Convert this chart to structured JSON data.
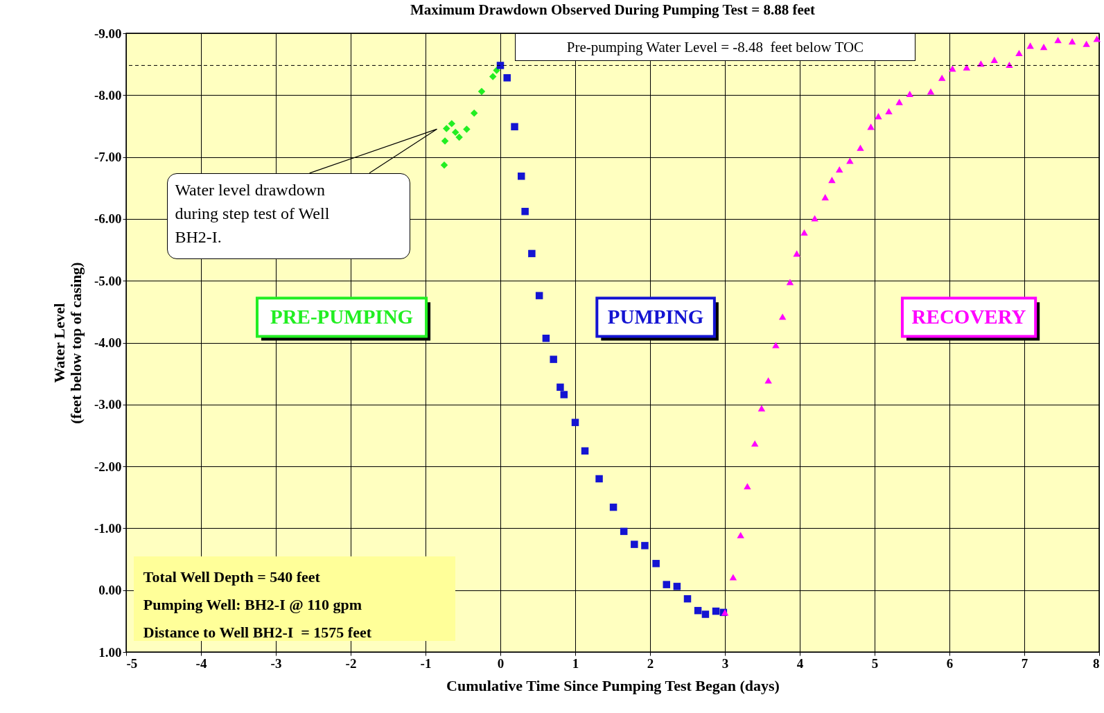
{
  "chart_data": {
    "type": "scatter",
    "title": "Maximum Drawdown Observed During Pumping Test = 8.88 feet",
    "xlabel": "Cumulative Time Since Pumping Test Began (days)",
    "ylabel": "Water Level\n(feet below top of casing)",
    "xlim": [
      -5,
      8
    ],
    "xticks": [
      -5,
      -4,
      -3,
      -2,
      -1,
      0,
      1,
      2,
      3,
      4,
      5,
      6,
      7,
      8
    ],
    "ylim": [
      1,
      -9
    ],
    "yticks": [
      {
        "value": -9,
        "label": "-9.00"
      },
      {
        "value": -8,
        "label": "-8.00"
      },
      {
        "value": -7,
        "label": "-7.00"
      },
      {
        "value": -6,
        "label": "-6.00"
      },
      {
        "value": -5,
        "label": "-5.00"
      },
      {
        "value": -4,
        "label": "-4.00"
      },
      {
        "value": -3,
        "label": "-3.00"
      },
      {
        "value": -2,
        "label": "-2.00"
      },
      {
        "value": -1,
        "label": "-1.00"
      },
      {
        "value": 0,
        "label": "0.00"
      },
      {
        "value": 1,
        "label": "1.00"
      }
    ],
    "grid": true,
    "series": [
      {
        "name": "PRE-PUMPING",
        "color": "#22ee22",
        "marker": "diamond",
        "x": [
          -0.75,
          -0.74,
          -0.72,
          -0.65,
          -0.6,
          -0.55,
          -0.45,
          -0.35,
          -0.25,
          -0.1,
          -0.05
        ],
        "values": [
          -6.87,
          -7.26,
          -7.46,
          -7.54,
          -7.4,
          -7.32,
          -7.45,
          -7.71,
          -8.06,
          -8.3,
          -8.4
        ]
      },
      {
        "name": "PUMPING",
        "color": "#1414d2",
        "marker": "square",
        "x": [
          0,
          0.09,
          0.19,
          0.28,
          0.33,
          0.42,
          0.52,
          0.61,
          0.71,
          0.8,
          0.85,
          1,
          1.13,
          1.32,
          1.51,
          1.65,
          1.79,
          1.93,
          2.08,
          2.22,
          2.36,
          2.5,
          2.64,
          2.74,
          2.88,
          2.98
        ],
        "values": [
          -8.48,
          -8.28,
          -7.49,
          -6.69,
          -6.12,
          -5.44,
          -4.76,
          -4.07,
          -3.73,
          -3.28,
          -3.16,
          -2.71,
          -2.25,
          -1.8,
          -1.34,
          -0.95,
          -0.74,
          -0.72,
          -0.43,
          -0.09,
          -0.06,
          0.14,
          0.33,
          0.39,
          0.34,
          0.36
        ]
      },
      {
        "name": "RECOVERY",
        "color": "#ff00ff",
        "marker": "triangle",
        "x": [
          3,
          3.11,
          3.21,
          3.3,
          3.4,
          3.49,
          3.58,
          3.68,
          3.77,
          3.87,
          3.96,
          4.06,
          4.2,
          4.34,
          4.43,
          4.53,
          4.67,
          4.81,
          4.95,
          5.05,
          5.19,
          5.33,
          5.47,
          5.75,
          5.9,
          6.04,
          6.23,
          6.42,
          6.6,
          6.8,
          6.93,
          7.08,
          7.26,
          7.45,
          7.64,
          7.83,
          7.97
        ],
        "values": [
          0.36,
          -0.21,
          -0.89,
          -1.68,
          -2.37,
          -2.94,
          -3.39,
          -3.96,
          -4.42,
          -4.98,
          -5.44,
          -5.78,
          -6.01,
          -6.35,
          -6.63,
          -6.8,
          -6.94,
          -7.15,
          -7.49,
          -7.66,
          -7.74,
          -7.89,
          -8.02,
          -8.06,
          -8.28,
          -8.43,
          -8.45,
          -8.51,
          -8.57,
          -8.49,
          -8.68,
          -8.8,
          -8.78,
          -8.89,
          -8.87,
          -8.83,
          -8.91
        ]
      }
    ],
    "ref_lines": [
      {
        "axis": "y",
        "value": -8.48,
        "label": "Pre-pumping Water Level = -8.48  feet below TOC",
        "color": "#000000",
        "line_style": "dashed"
      }
    ],
    "annotations": [
      "Water level drawdown during step test of Well BH2-I.",
      "Total Well Depth = 540 feet",
      "Pumping Well: BH2-I @ 110 gpm",
      "Distance to Well BH2-I  = 1575 feet"
    ]
  }
}
